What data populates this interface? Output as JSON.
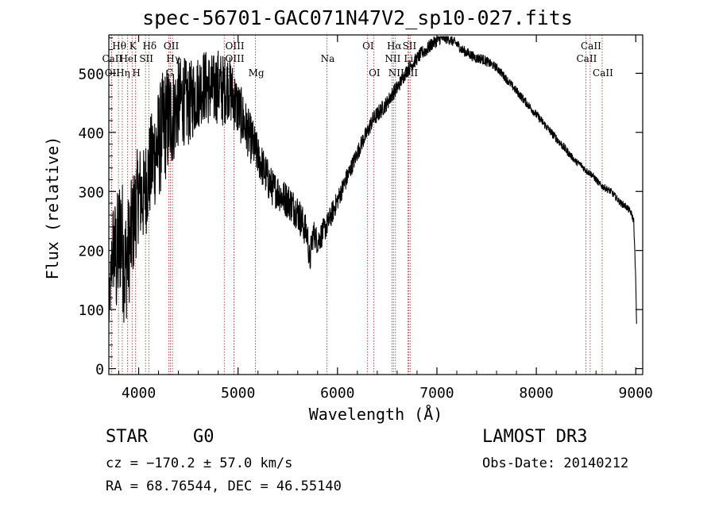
{
  "chart_data": {
    "type": "line",
    "title": "spec-56701-GAC071N47V2_sp10-027.fits",
    "xlabel": "Wavelength (Å)",
    "ylabel": "Flux (relative)",
    "xlim": [
      3700,
      9070
    ],
    "ylim": [
      -10,
      565
    ],
    "xticks": [
      4000,
      5000,
      6000,
      7000,
      8000,
      9000
    ],
    "yticks": [
      0,
      100,
      200,
      300,
      400,
      500
    ],
    "series": [
      {
        "name": "flux",
        "x": [
          3700,
          3740,
          3780,
          3820,
          3860,
          3900,
          3950,
          4000,
          4050,
          4100,
          4150,
          4200,
          4250,
          4300,
          4350,
          4400,
          4450,
          4500,
          4550,
          4600,
          4650,
          4700,
          4750,
          4800,
          4850,
          4900,
          4950,
          5000,
          5050,
          5100,
          5150,
          5200,
          5250,
          5300,
          5350,
          5400,
          5450,
          5500,
          5550,
          5600,
          5650,
          5700,
          5720,
          5740,
          5760,
          5800,
          5850,
          5900,
          5950,
          6000,
          6050,
          6100,
          6150,
          6200,
          6250,
          6300,
          6350,
          6400,
          6450,
          6500,
          6550,
          6600,
          6650,
          6700,
          6750,
          6800,
          6850,
          6900,
          6950,
          7000,
          7050,
          7100,
          7150,
          7200,
          7250,
          7300,
          7350,
          7400,
          7450,
          7500,
          7550,
          7600,
          7650,
          7700,
          7750,
          7800,
          7850,
          7900,
          7950,
          8000,
          8050,
          8100,
          8150,
          8200,
          8250,
          8300,
          8350,
          8400,
          8450,
          8500,
          8550,
          8600,
          8650,
          8700,
          8750,
          8800,
          8850,
          8900,
          8950,
          8980,
          9000,
          9010
        ],
        "y": [
          90,
          210,
          180,
          240,
          170,
          200,
          250,
          300,
          290,
          330,
          360,
          380,
          410,
          420,
          430,
          450,
          455,
          445,
          460,
          470,
          480,
          475,
          470,
          480,
          470,
          480,
          460,
          440,
          420,
          400,
          380,
          360,
          340,
          320,
          305,
          300,
          290,
          285,
          275,
          265,
          245,
          225,
          175,
          215,
          230,
          215,
          230,
          245,
          265,
          285,
          305,
          325,
          345,
          365,
          385,
          400,
          420,
          430,
          440,
          450,
          465,
          475,
          490,
          505,
          515,
          525,
          535,
          540,
          550,
          555,
          560,
          560,
          555,
          550,
          540,
          535,
          530,
          525,
          525,
          520,
          515,
          510,
          500,
          490,
          480,
          470,
          460,
          450,
          440,
          430,
          420,
          410,
          400,
          390,
          380,
          370,
          360,
          350,
          345,
          335,
          330,
          320,
          310,
          305,
          300,
          290,
          280,
          275,
          265,
          250,
          150,
          60
        ],
        "noise": [
          25,
          55,
          80,
          85,
          75,
          70,
          65,
          60,
          60,
          60,
          65,
          70,
          70,
          70,
          60,
          55,
          55,
          50,
          50,
          45,
          45,
          45,
          45,
          45,
          45,
          40,
          40,
          35,
          35,
          30,
          30,
          25,
          25,
          25,
          22,
          22,
          22,
          22,
          22,
          22,
          22,
          18,
          20,
          18,
          16,
          16,
          16,
          14,
          14,
          12,
          12,
          12,
          10,
          10,
          10,
          10,
          10,
          10,
          10,
          9,
          9,
          9,
          8,
          8,
          8,
          8,
          8,
          8,
          8,
          7,
          7,
          7,
          6,
          6,
          6,
          6,
          6,
          6,
          6,
          6,
          5,
          5,
          5,
          5,
          5,
          5,
          5,
          5,
          5,
          5,
          5,
          5,
          5,
          5,
          5,
          5,
          4,
          4,
          4,
          4,
          4,
          4,
          4,
          4,
          4,
          4,
          4,
          4,
          4,
          4,
          4,
          4
        ]
      }
    ],
    "line_marks": [
      {
        "label": "Hθ",
        "x": 3797,
        "row": 1
      },
      {
        "label": "K",
        "x": 3934,
        "row": 1
      },
      {
        "label": "Hδ",
        "x": 4102,
        "row": 1
      },
      {
        "label": "OII",
        "x": 4320,
        "row": 1
      },
      {
        "label": "OIII",
        "x": 4959,
        "row": 1
      },
      {
        "label": "OI",
        "x": 6300,
        "row": 1
      },
      {
        "label": "Hα",
        "x": 6563,
        "row": 1
      },
      {
        "label": "SII",
        "x": 6716,
        "row": 1
      },
      {
        "label": "CaII",
        "x": 8542,
        "row": 1
      },
      {
        "label": "CaII",
        "x": 3727,
        "row": 2
      },
      {
        "label": "HeI",
        "x": 3889,
        "row": 2
      },
      {
        "label": "SII",
        "x": 4069,
        "row": 2
      },
      {
        "label": "Hγ",
        "x": 4340,
        "row": 2
      },
      {
        "label": "OIII",
        "x": 4959,
        "row": 2
      },
      {
        "label": "Na",
        "x": 5893,
        "row": 2
      },
      {
        "label": "NII",
        "x": 6548,
        "row": 2
      },
      {
        "label": "Li",
        "x": 6707,
        "row": 2
      },
      {
        "label": "CaII",
        "x": 8498,
        "row": 2
      },
      {
        "label": "OII",
        "x": 3727,
        "row": 3
      },
      {
        "label": "Hη",
        "x": 3835,
        "row": 3
      },
      {
        "label": "H",
        "x": 3969,
        "row": 3
      },
      {
        "label": "G",
        "x": 4304,
        "row": 3
      },
      {
        "label": "Hβ",
        "x": 4861,
        "row": 3
      },
      {
        "label": "Mg",
        "x": 5175,
        "row": 3
      },
      {
        "label": "OI",
        "x": 6364,
        "row": 3
      },
      {
        "label": "NII",
        "x": 6583,
        "row": 3
      },
      {
        "label": "SII",
        "x": 6731,
        "row": 3
      },
      {
        "label": "CaII",
        "x": 8662,
        "row": 3
      }
    ],
    "line_color": "#b03a3a",
    "frame_color": "#000000"
  },
  "info": {
    "objtype": "STAR",
    "subclass": "G0",
    "cz": "cz = −170.2 ± 57.0 km/s",
    "radec": "RA =  68.76544, DEC =  46.55140",
    "survey": "LAMOST DR3",
    "obsdate": "Obs-Date: 20140212"
  }
}
